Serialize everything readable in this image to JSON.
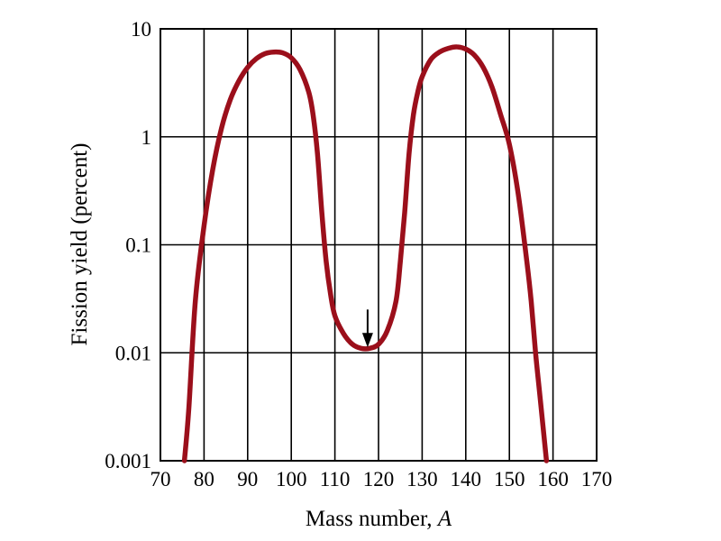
{
  "chart_data": {
    "type": "line",
    "title": "",
    "xlabel": "Mass number, ",
    "xlabel_italic": "A",
    "ylabel": "Fission yield (percent)",
    "xlim": [
      70,
      170
    ],
    "ylim": [
      0.001,
      10
    ],
    "yscale": "log",
    "grid": true,
    "x_ticks": [
      "70",
      "80",
      "90",
      "100",
      "110",
      "120",
      "130",
      "140",
      "150",
      "160",
      "170"
    ],
    "y_ticks": [
      {
        "value": 0.001,
        "label": "0.001"
      },
      {
        "value": 0.01,
        "label": "0.01"
      },
      {
        "value": 0.1,
        "label": "0.1"
      },
      {
        "value": 1,
        "label": "1"
      },
      {
        "value": 10,
        "label": "10"
      }
    ],
    "line_color": "#9b0f1b",
    "series": [
      {
        "x": [
          75.5,
          76.5,
          78,
          80,
          82,
          84,
          86,
          88,
          90,
          92,
          94,
          96,
          98,
          100,
          102,
          104,
          105,
          106,
          107,
          108,
          109,
          110,
          112,
          114,
          116,
          118,
          120,
          122,
          124,
          125,
          126,
          127,
          128,
          129,
          130,
          132,
          134,
          136,
          138,
          140,
          142,
          144,
          146,
          148,
          150,
          152,
          154,
          155,
          156,
          157,
          158.5
        ],
        "y": [
          0.001,
          0.003,
          0.03,
          0.15,
          0.5,
          1.2,
          2.2,
          3.3,
          4.4,
          5.3,
          5.9,
          6.1,
          6.0,
          5.4,
          4.2,
          2.6,
          1.6,
          0.7,
          0.2,
          0.07,
          0.035,
          0.022,
          0.015,
          0.012,
          0.011,
          0.011,
          0.012,
          0.016,
          0.03,
          0.07,
          0.2,
          0.7,
          1.6,
          2.6,
          3.6,
          5.2,
          6.1,
          6.6,
          6.8,
          6.5,
          5.7,
          4.4,
          2.9,
          1.6,
          0.85,
          0.3,
          0.07,
          0.03,
          0.01,
          0.004,
          0.001
        ]
      }
    ],
    "annotations": [
      {
        "type": "arrow",
        "x": 117.5,
        "y": 0.011
      }
    ]
  }
}
